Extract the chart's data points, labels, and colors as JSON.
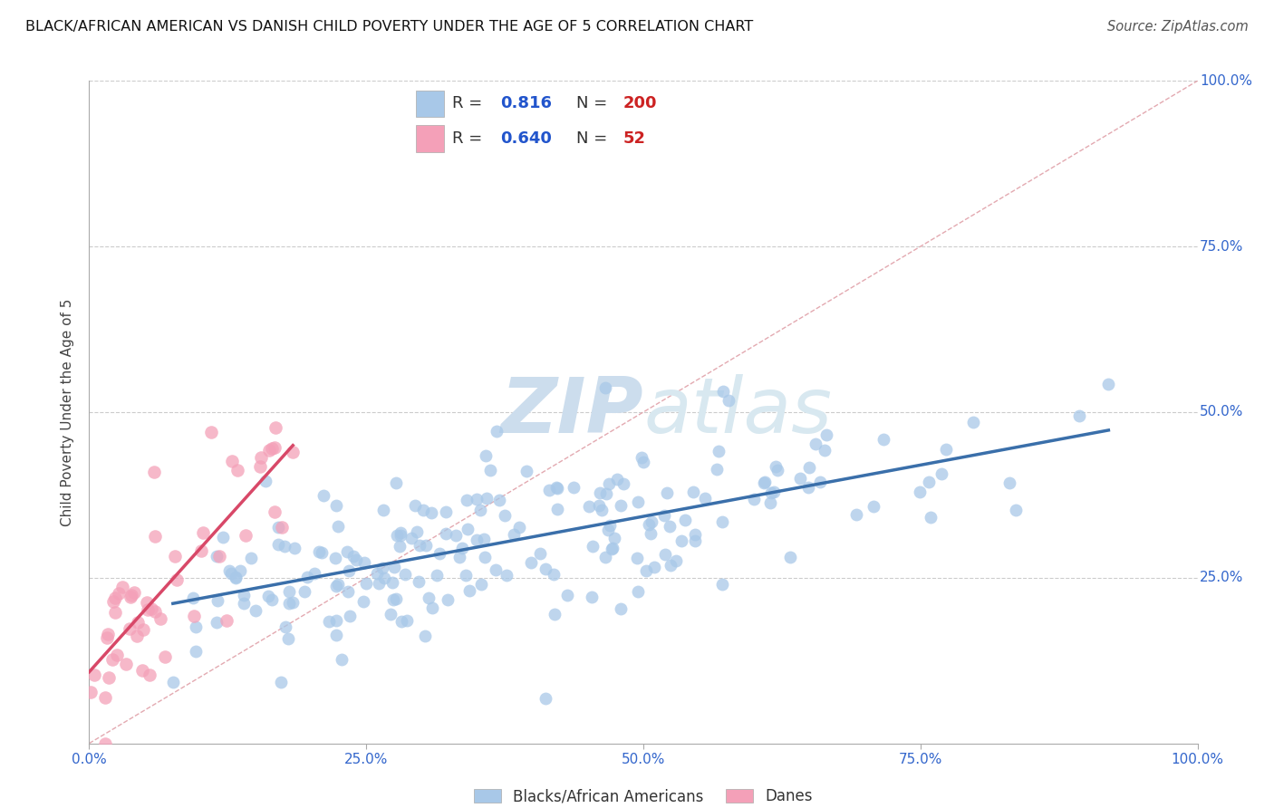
{
  "title": "BLACK/AFRICAN AMERICAN VS DANISH CHILD POVERTY UNDER THE AGE OF 5 CORRELATION CHART",
  "source": "Source: ZipAtlas.com",
  "ylabel": "Child Poverty Under the Age of 5",
  "xlim": [
    0,
    1
  ],
  "ylim": [
    0,
    1
  ],
  "xticks": [
    0,
    0.25,
    0.5,
    0.75,
    1.0
  ],
  "yticks": [
    0,
    0.25,
    0.5,
    0.75,
    1.0
  ],
  "xticklabels": [
    "0.0%",
    "25.0%",
    "50.0%",
    "75.0%",
    "100.0%"
  ],
  "right_yticklabels": [
    "25.0%",
    "50.0%",
    "75.0%",
    "100.0%"
  ],
  "blue_R": 0.816,
  "blue_N": 200,
  "pink_R": 0.64,
  "pink_N": 52,
  "blue_color": "#a8c8e8",
  "pink_color": "#f4a0b8",
  "blue_line_color": "#3a6faa",
  "pink_line_color": "#d84868",
  "diagonal_color": "#e0a0a8",
  "watermark_zip": "ZIP",
  "watermark_atlas": "atlas",
  "watermark_color": "#ccdded",
  "legend_label_blue": "Blacks/African Americans",
  "legend_label_pink": "Danes",
  "blue_seed": 42,
  "pink_seed": 123
}
